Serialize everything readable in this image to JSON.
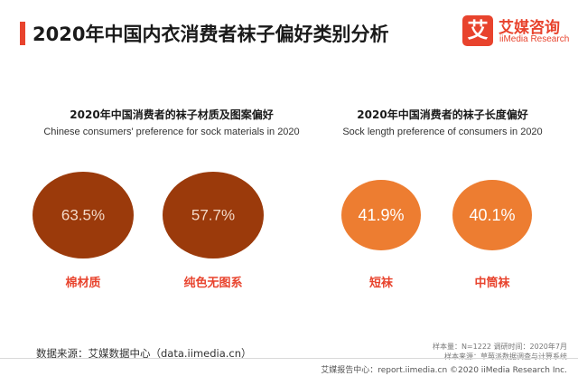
{
  "header": {
    "title": "2020年中国内衣消费者袜子偏好类别分析",
    "logo_mark": "艾",
    "logo_cn": "艾媒咨询",
    "logo_en": "iiMedia Research"
  },
  "colors": {
    "accent": "#e8432d",
    "material_bubble": "#9b3a0b",
    "length_bubble": "#ed7d31",
    "label_text": "#e8432d"
  },
  "chart_data": [
    {
      "type": "bubble",
      "title": "2020年中国消费者的袜子材质及图案偏好",
      "subtitle": "Chinese consumers' preference for sock materials in 2020",
      "categories": [
        "棉材质",
        "纯色无图系"
      ],
      "values": [
        63.5,
        57.7
      ],
      "value_labels": [
        "63.5%",
        "57.7%"
      ],
      "unit": "%"
    },
    {
      "type": "bubble",
      "title": "2020年中国消费者的袜子长度偏好",
      "subtitle": "Sock length preference of consumers in 2020",
      "categories": [
        "短袜",
        "中筒袜"
      ],
      "values": [
        41.9,
        40.1
      ],
      "value_labels": [
        "41.9%",
        "40.1%"
      ],
      "unit": "%"
    }
  ],
  "footer": {
    "source": "数据来源：艾媒数据中心（data.iimedia.cn）",
    "meta1": "样本量：N=1222    调研时间：2020年7月",
    "meta2": "样本来源：草莓派数据调查与计算系统",
    "copyright": "艾媒报告中心：report.iimedia.cn  ©2020  iiMedia Research  Inc."
  }
}
